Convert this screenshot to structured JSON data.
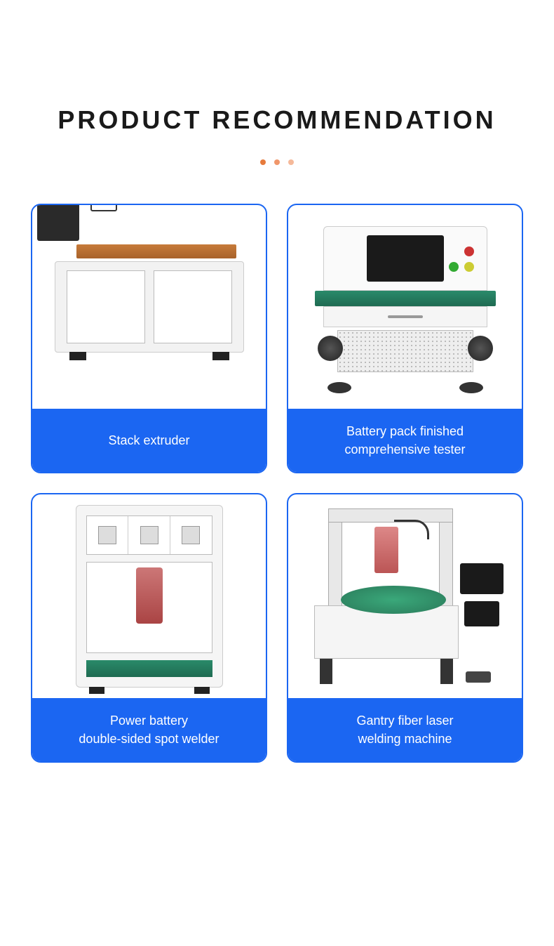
{
  "title": "PRODUCT RECOMMENDATION",
  "dots": {
    "colors": [
      "#e67a3c",
      "#f0976b",
      "#f5b99a"
    ]
  },
  "card_border": "#1b66f2",
  "label_bg": "#1b66f2",
  "products": [
    {
      "label": "Stack extruder"
    },
    {
      "label": "Battery pack finished\ncomprehensive tester"
    },
    {
      "label": "Power battery\ndouble-sided spot welder"
    },
    {
      "label": "Gantry fiber laser\nwelding machine"
    }
  ]
}
